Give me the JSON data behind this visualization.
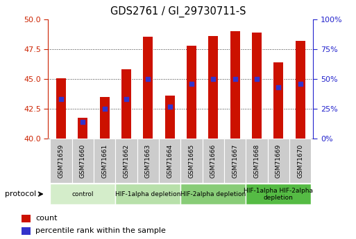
{
  "title": "GDS2761 / GI_29730711-S",
  "samples": [
    "GSM71659",
    "GSM71660",
    "GSM71661",
    "GSM71662",
    "GSM71663",
    "GSM71664",
    "GSM71665",
    "GSM71666",
    "GSM71667",
    "GSM71668",
    "GSM71669",
    "GSM71670"
  ],
  "counts": [
    45.05,
    41.75,
    43.5,
    45.8,
    48.55,
    43.6,
    47.8,
    48.6,
    49.0,
    48.9,
    46.4,
    48.2
  ],
  "percentile_ranks": [
    33,
    14,
    25,
    33,
    50,
    27,
    46,
    50,
    50,
    50,
    43,
    46
  ],
  "ylim_left": [
    40,
    50
  ],
  "ylim_right": [
    0,
    100
  ],
  "yticks_left": [
    40,
    42.5,
    45,
    47.5,
    50
  ],
  "yticks_right": [
    0,
    25,
    50,
    75,
    100
  ],
  "bar_color": "#cc1100",
  "dot_color": "#3333cc",
  "bar_width": 0.45,
  "protocol_groups": [
    {
      "label": "control",
      "start": 0,
      "end": 2,
      "color": "#d4edca"
    },
    {
      "label": "HIF-1alpha depletion",
      "start": 3,
      "end": 5,
      "color": "#b8e0aa"
    },
    {
      "label": "HIF-2alpha depletion",
      "start": 6,
      "end": 8,
      "color": "#88cc77"
    },
    {
      "label": "HIF-1alpha HIF-2alpha\ndepletion",
      "start": 9,
      "end": 11,
      "color": "#55bb44"
    }
  ],
  "legend_count_label": "count",
  "legend_percentile_label": "percentile rank within the sample",
  "protocol_label": "protocol",
  "left_axis_color": "#cc2200",
  "right_axis_color": "#2222cc",
  "plot_bg_color": "#ffffff",
  "tick_box_color": "#cccccc",
  "gridline_color": "#333333"
}
